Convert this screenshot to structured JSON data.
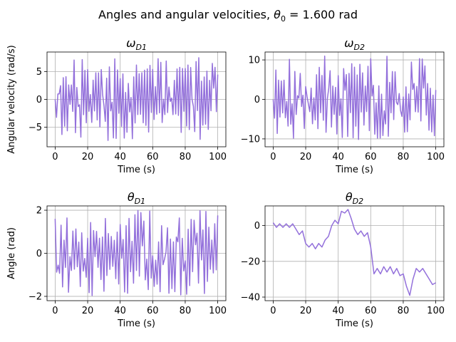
{
  "figure": {
    "suptitle_prefix": "Angles and angular velocities, ",
    "suptitle_symbol": "θ",
    "suptitle_sub": "0",
    "suptitle_value": "  = 1.600 rad"
  },
  "chart_data": [
    {
      "type": "line",
      "title_symbol": "ω",
      "title_sub": "D1",
      "xlabel": "Time (s)",
      "ylabel": "Angular velocity (rad/s)",
      "xlim": [
        -5,
        105
      ],
      "ylim": [
        -8.5,
        8.5
      ],
      "xticks": [
        0,
        20,
        40,
        60,
        80,
        100
      ],
      "yticks": [
        -5,
        0,
        5
      ],
      "grid": true,
      "series": [
        {
          "color": "#9370db",
          "amplitude": 7.5,
          "cycles": 60,
          "seed": 11,
          "start": 0.0
        }
      ]
    },
    {
      "type": "line",
      "title_symbol": "ω",
      "title_sub": "D2",
      "xlabel": "Time (s)",
      "ylabel": "",
      "xlim": [
        -5,
        105
      ],
      "ylim": [
        -12,
        12
      ],
      "xticks": [
        0,
        20,
        40,
        60,
        80,
        100
      ],
      "yticks": [
        -10,
        0,
        10
      ],
      "grid": true,
      "series": [
        {
          "color": "#9370db",
          "amplitude": 11,
          "cycles": 60,
          "seed": 23,
          "start": 0.0
        }
      ]
    },
    {
      "type": "line",
      "title_symbol": "θ",
      "title_sub": "D1",
      "xlabel": "Time (s)",
      "ylabel": "Angle (rad)",
      "xlim": [
        -5,
        105
      ],
      "ylim": [
        -2.2,
        2.2
      ],
      "xticks": [
        0,
        20,
        40,
        60,
        80,
        100
      ],
      "yticks": [
        -2,
        0,
        2
      ],
      "grid": true,
      "series": [
        {
          "color": "#9370db",
          "amplitude": 2.0,
          "cycles": 55,
          "seed": 37,
          "start": 1.6
        }
      ]
    },
    {
      "type": "line",
      "title_symbol": "θ",
      "title_sub": "D2",
      "xlabel": "Time (s)",
      "ylabel": "",
      "xlim": [
        -5,
        105
      ],
      "ylim": [
        -42,
        11
      ],
      "xticks": [
        0,
        20,
        40,
        60,
        80,
        100
      ],
      "yticks": [
        -40,
        -20,
        0
      ],
      "grid": true,
      "series": [
        {
          "color": "#9370db",
          "points": [
            [
              0,
              1.6
            ],
            [
              2,
              -1
            ],
            [
              4,
              1
            ],
            [
              6,
              -1
            ],
            [
              8,
              1
            ],
            [
              10,
              -1
            ],
            [
              12,
              1
            ],
            [
              14,
              -2
            ],
            [
              16,
              -5
            ],
            [
              18,
              -3
            ],
            [
              20,
              -10
            ],
            [
              22,
              -12
            ],
            [
              24,
              -10
            ],
            [
              26,
              -13
            ],
            [
              28,
              -10
            ],
            [
              30,
              -12
            ],
            [
              32,
              -8
            ],
            [
              34,
              -6
            ],
            [
              36,
              0
            ],
            [
              38,
              3
            ],
            [
              40,
              1
            ],
            [
              42,
              8
            ],
            [
              44,
              7
            ],
            [
              46,
              9
            ],
            [
              48,
              4
            ],
            [
              50,
              -2
            ],
            [
              52,
              -5
            ],
            [
              54,
              -3
            ],
            [
              56,
              -6
            ],
            [
              58,
              -4
            ],
            [
              60,
              -12
            ],
            [
              62,
              -27
            ],
            [
              64,
              -24
            ],
            [
              66,
              -27
            ],
            [
              68,
              -23
            ],
            [
              70,
              -26
            ],
            [
              72,
              -23
            ],
            [
              74,
              -27
            ],
            [
              76,
              -24
            ],
            [
              78,
              -28
            ],
            [
              80,
              -27
            ],
            [
              82,
              -34
            ],
            [
              84,
              -39
            ],
            [
              86,
              -30
            ],
            [
              88,
              -24
            ],
            [
              90,
              -26
            ],
            [
              92,
              -24
            ],
            [
              94,
              -27
            ],
            [
              96,
              -30
            ],
            [
              98,
              -33
            ],
            [
              100,
              -32
            ]
          ]
        }
      ]
    }
  ]
}
